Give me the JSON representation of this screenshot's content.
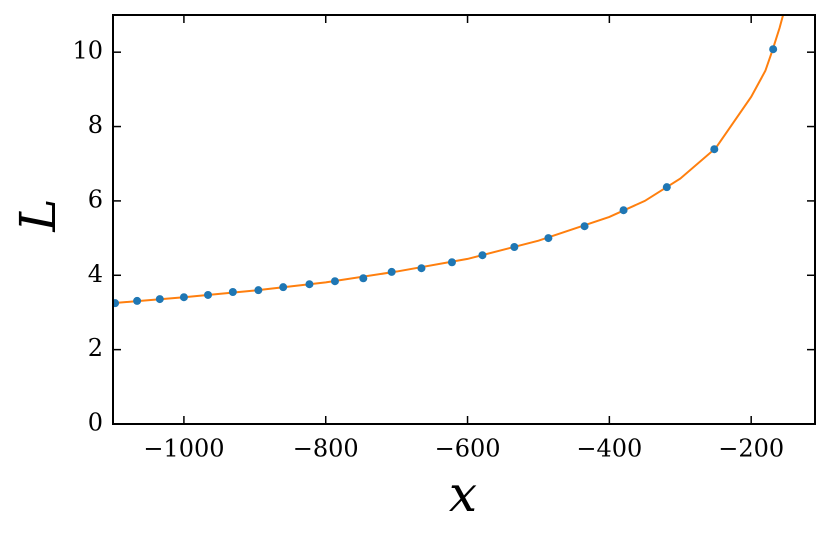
{
  "chart_data": {
    "type": "scatter",
    "xlabel": "x",
    "ylabel": "L",
    "xlim": [
      -1100,
      -110
    ],
    "ylim": [
      0,
      11
    ],
    "xticks": [
      {
        "value": -1000,
        "label": "−1000"
      },
      {
        "value": -800,
        "label": "−800"
      },
      {
        "value": -600,
        "label": "−600"
      },
      {
        "value": -400,
        "label": "−400"
      },
      {
        "value": -200,
        "label": "−200"
      }
    ],
    "yticks": [
      0,
      2,
      4,
      6,
      8,
      10
    ],
    "series": [
      {
        "style": "line",
        "color": "#ff7f0e",
        "x": [
          -1100,
          -1000,
          -900,
          -800,
          -700,
          -600,
          -500,
          -400,
          -350,
          -300,
          -250,
          -200,
          -180,
          -170,
          -160,
          -155
        ],
        "values": [
          3.25,
          3.41,
          3.59,
          3.81,
          4.1,
          4.44,
          4.93,
          5.57,
          6.0,
          6.6,
          7.42,
          8.8,
          9.5,
          10.05,
          10.65,
          11.0
        ]
      },
      {
        "style": "markers",
        "color": "#1f77b4",
        "x": [
          -1097,
          -1066,
          -1034,
          -1000,
          -966,
          -931,
          -895,
          -860,
          -823,
          -787,
          -747,
          -707,
          -665,
          -622,
          -579,
          -534,
          -486,
          -435,
          -380,
          -319,
          -252,
          -169
        ],
        "values": [
          3.25,
          3.31,
          3.36,
          3.41,
          3.47,
          3.55,
          3.6,
          3.68,
          3.76,
          3.84,
          3.92,
          4.09,
          4.19,
          4.35,
          4.54,
          4.76,
          5.0,
          5.32,
          5.75,
          6.37,
          7.39,
          10.08
        ]
      }
    ]
  }
}
